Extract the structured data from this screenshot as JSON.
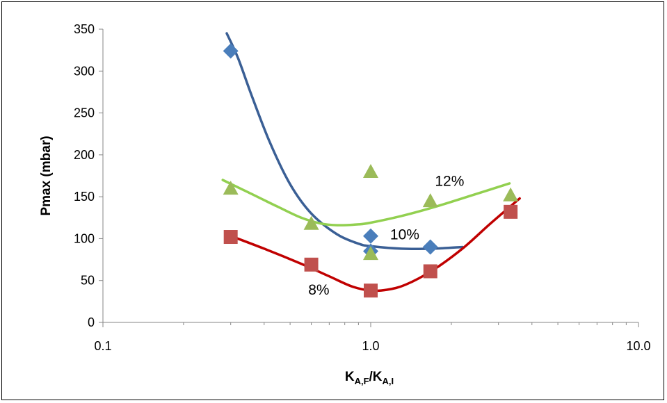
{
  "chart_data": {
    "type": "scatter",
    "title": "",
    "ylabel": "Pmax (mbar)",
    "xlabel": {
      "main": "K",
      "sub1": "A,F",
      "mid": "/K",
      "sub2": "A,I"
    },
    "x_scale": "log",
    "xlim": [
      0.1,
      10.0
    ],
    "ylim": [
      0,
      350
    ],
    "x_ticks": [
      {
        "value": 0.1,
        "label": "0.1"
      },
      {
        "value": 1.0,
        "label": "1.0"
      },
      {
        "value": 10.0,
        "label": "10.0"
      }
    ],
    "y_ticks": [
      {
        "value": 0,
        "label": "0"
      },
      {
        "value": 50,
        "label": "50"
      },
      {
        "value": 100,
        "label": "100"
      },
      {
        "value": 150,
        "label": "150"
      },
      {
        "value": 200,
        "label": "200"
      },
      {
        "value": 250,
        "label": "250"
      },
      {
        "value": 300,
        "label": "300"
      },
      {
        "value": 350,
        "label": "350"
      }
    ],
    "grid": false,
    "legend": "none",
    "series": [
      {
        "label": "10%",
        "marker": "diamond",
        "color": "#4a7ebb",
        "trend_color": "#3a5f95",
        "points": [
          [
            0.3,
            324
          ],
          [
            1.0,
            103
          ],
          [
            1.0,
            85
          ],
          [
            1.67,
            90
          ]
        ],
        "trend": [
          [
            0.29,
            345
          ],
          [
            0.32,
            315
          ],
          [
            0.36,
            270
          ],
          [
            0.42,
            215
          ],
          [
            0.5,
            165
          ],
          [
            0.6,
            130
          ],
          [
            0.75,
            105
          ],
          [
            0.9,
            94
          ],
          [
            1.0,
            91
          ],
          [
            1.3,
            88
          ],
          [
            1.7,
            88
          ],
          [
            2.2,
            90
          ]
        ]
      },
      {
        "label": "12%",
        "marker": "triangle",
        "color": "#9bbb59",
        "trend_color": "#92d050",
        "points": [
          [
            0.3,
            160
          ],
          [
            0.6,
            118
          ],
          [
            1.0,
            180
          ],
          [
            1.0,
            82
          ],
          [
            1.67,
            145
          ],
          [
            3.33,
            152
          ]
        ],
        "trend": [
          [
            0.28,
            170
          ],
          [
            0.35,
            155
          ],
          [
            0.45,
            138
          ],
          [
            0.55,
            125
          ],
          [
            0.65,
            118
          ],
          [
            0.75,
            116
          ],
          [
            0.9,
            117
          ],
          [
            1.0,
            119
          ],
          [
            1.3,
            127
          ],
          [
            1.7,
            137
          ],
          [
            2.3,
            150
          ],
          [
            3.3,
            166
          ]
        ]
      },
      {
        "label": "8%",
        "marker": "square",
        "color": "#c0504d",
        "trend_color": "#c00000",
        "points": [
          [
            0.3,
            102
          ],
          [
            0.6,
            69
          ],
          [
            1.0,
            38
          ],
          [
            1.67,
            61
          ],
          [
            3.33,
            132
          ]
        ],
        "trend": [
          [
            0.29,
            105
          ],
          [
            0.4,
            88
          ],
          [
            0.55,
            70
          ],
          [
            0.7,
            55
          ],
          [
            0.85,
            43
          ],
          [
            1.0,
            38
          ],
          [
            1.15,
            39
          ],
          [
            1.35,
            45
          ],
          [
            1.7,
            62
          ],
          [
            2.2,
            88
          ],
          [
            2.8,
            118
          ],
          [
            3.6,
            148
          ]
        ]
      }
    ],
    "annotations": [
      {
        "text": "12%",
        "x": 1.97,
        "y": 163
      },
      {
        "text": "10%",
        "x": 1.34,
        "y": 99
      },
      {
        "text": "8%",
        "x": 0.64,
        "y": 33
      }
    ]
  }
}
